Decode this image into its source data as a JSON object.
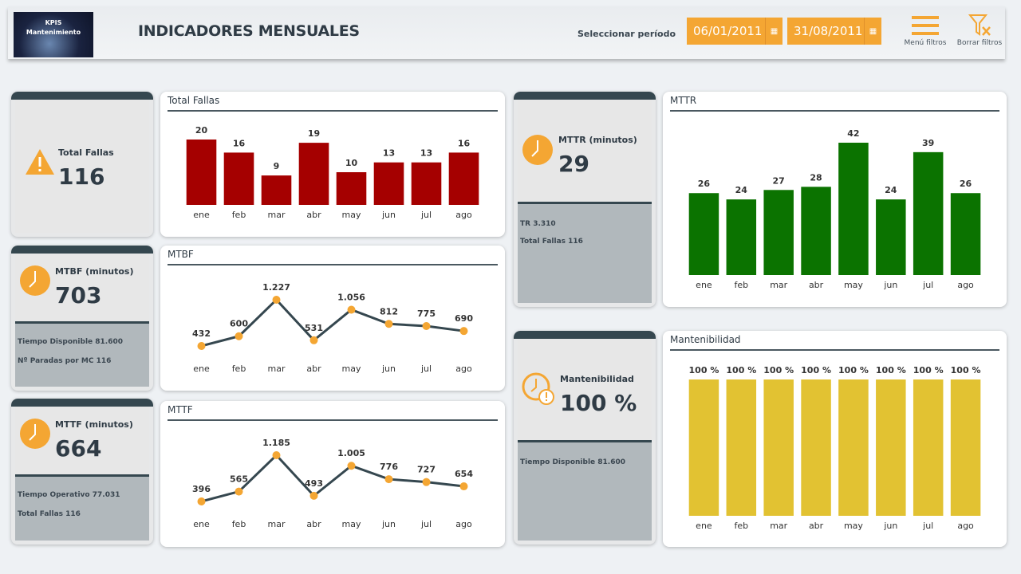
{
  "header": {
    "logo_text": [
      "KPIS",
      "Mantenimiento"
    ],
    "title": "INDICADORES MENSUALES",
    "period_label": "Seleccionar período",
    "date_start": "06/01/2011",
    "date_end": "31/08/2011",
    "menu_label": "Menú  filtros",
    "clear_label": "Borrar filtros"
  },
  "colors": {
    "accent": "#f4a633",
    "dark": "#35474f",
    "fallas": "#a50000",
    "mttr": "#0b7300",
    "mant": "#e2c232",
    "line": "#35474f"
  },
  "kpis": {
    "fallas": {
      "label": "Total Fallas",
      "value": "116",
      "icon": "warning-icon"
    },
    "mtbf": {
      "label": "MTBF (minutos)",
      "value": "703",
      "sub1": "Tiempo Disponible 81.600",
      "sub2": "Nº Paradas por MC 116",
      "icon": "clock-icon"
    },
    "mttf": {
      "label": "MTTF (minutos)",
      "value": "664",
      "sub1": "Tiempo Operativo 77.031",
      "sub2": "Total Fallas 116",
      "icon": "clock-icon"
    },
    "mttr": {
      "label": "MTTR (minutos)",
      "value": "29",
      "sub1": "TR 3.310",
      "sub2": "Total Fallas 116",
      "icon": "clock-icon"
    },
    "mant": {
      "label": "Mantenibilidad",
      "value": "100 %",
      "sub1": "Tiempo Disponible 81.600",
      "icon": "clock-alert-icon"
    }
  },
  "chart_data": [
    {
      "id": "fallas",
      "type": "bar",
      "title": "Total Fallas",
      "categories": [
        "ene",
        "feb",
        "mar",
        "abr",
        "may",
        "jun",
        "jul",
        "ago"
      ],
      "values": [
        20,
        16,
        9,
        19,
        10,
        13,
        13,
        16
      ],
      "labels": [
        "20",
        "16",
        "9",
        "19",
        "10",
        "13",
        "13",
        "16"
      ],
      "ylim": [
        0,
        20
      ]
    },
    {
      "id": "mtbf",
      "type": "line",
      "title": "MTBF",
      "categories": [
        "ene",
        "feb",
        "mar",
        "abr",
        "may",
        "jun",
        "jul",
        "ago"
      ],
      "values": [
        432,
        600,
        1227,
        531,
        1056,
        812,
        775,
        690
      ],
      "labels": [
        "432",
        "600",
        "1.227",
        "531",
        "1.056",
        "812",
        "775",
        "690"
      ]
    },
    {
      "id": "mttf",
      "type": "line",
      "title": "MTTF",
      "categories": [
        "ene",
        "feb",
        "mar",
        "abr",
        "may",
        "jun",
        "jul",
        "ago"
      ],
      "values": [
        396,
        565,
        1185,
        493,
        1005,
        776,
        727,
        654
      ],
      "labels": [
        "396",
        "565",
        "1.185",
        "493",
        "1.005",
        "776",
        "727",
        "654"
      ]
    },
    {
      "id": "mttr",
      "type": "bar",
      "title": "MTTR",
      "categories": [
        "ene",
        "feb",
        "mar",
        "abr",
        "may",
        "jun",
        "jul",
        "ago"
      ],
      "values": [
        26,
        24,
        27,
        28,
        42,
        24,
        39,
        26
      ],
      "labels": [
        "26",
        "24",
        "27",
        "28",
        "42",
        "24",
        "39",
        "26"
      ],
      "ylim": [
        0,
        42
      ]
    },
    {
      "id": "mant",
      "type": "bar",
      "title": "Mantenibilidad",
      "categories": [
        "ene",
        "feb",
        "mar",
        "abr",
        "may",
        "jun",
        "jul",
        "ago"
      ],
      "values": [
        100,
        100,
        100,
        100,
        100,
        100,
        100,
        100
      ],
      "labels": [
        "100 %",
        "100 %",
        "100 %",
        "100 %",
        "100 %",
        "100 %",
        "100 %",
        "100 %"
      ],
      "ylim": [
        0,
        100
      ]
    }
  ]
}
